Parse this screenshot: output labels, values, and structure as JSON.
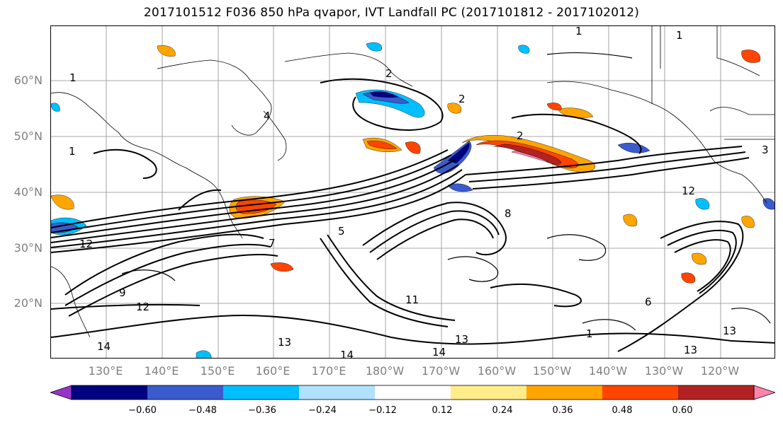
{
  "title": "2017101512 F036 850 hPa qvapor, IVT Landfall PC (2017101812 - 2017102012)",
  "lat_labels": [
    "60°N",
    "50°N",
    "40°N",
    "30°N",
    "20°N"
  ],
  "lon_labels": [
    "130°E",
    "140°E",
    "150°E",
    "160°E",
    "170°E",
    "180°W",
    "170°W",
    "160°W",
    "150°W",
    "140°W",
    "130°W",
    "120°W"
  ],
  "colorbar": {
    "colors": [
      "#9932cc",
      "#000080",
      "#3a5bcd",
      "#00bfff",
      "#b0e2ff",
      "#ffffff",
      "#ffec8b",
      "#ffa500",
      "#ff4500",
      "#b22222",
      "#ff82ab"
    ],
    "ticks": [
      "−0.60",
      "−0.48",
      "−0.36",
      "−0.24",
      "−0.12",
      "0.12",
      "0.24",
      "0.36",
      "0.48",
      "0.60"
    ]
  },
  "contour_labels": [
    "1",
    "1",
    "1",
    "2",
    "2",
    "2",
    "1",
    "1",
    "12",
    "12",
    "12",
    "14",
    "14",
    "14",
    "13",
    "13",
    "13",
    "13",
    "11",
    "3",
    "4",
    "5",
    "6",
    "7",
    "8",
    "9"
  ]
}
